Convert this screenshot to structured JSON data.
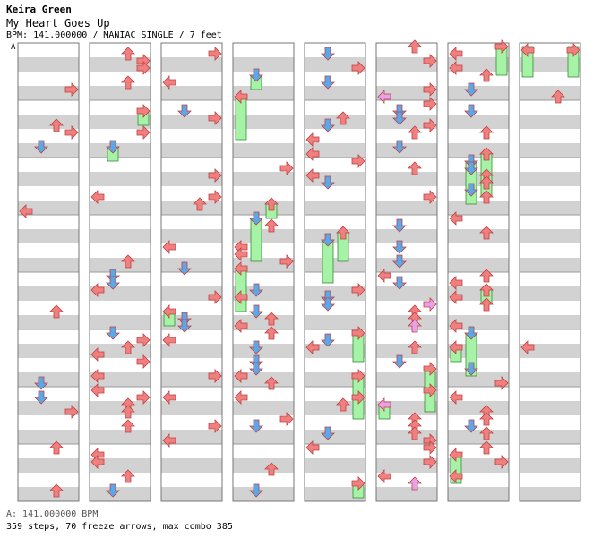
{
  "header": {
    "artist": "Keira Green",
    "song": "My Heart Goes Up",
    "info": "BPM: 141.000000 / MANIAC SINGLE / 7 feet"
  },
  "section_label": "A",
  "footer": {
    "bpm_line": "A: 141.000000 BPM",
    "stats": "359 steps, 70 freeze arrows, max combo 385"
  },
  "colors": {
    "left": "#f08080",
    "up": "#f08080",
    "down": "#5aa8ea",
    "right": "#f08080",
    "special": "#e8a0e8",
    "freeze": "#a6f2a6",
    "stripe": "#d2d2d2",
    "border": "#777777"
  },
  "chart_data": {
    "type": "table",
    "description_of_columns": [
      "left",
      "down",
      "up",
      "right"
    ],
    "column_count": 8,
    "measures_per_column": 8,
    "rows_per_measure": 4,
    "columns": [
      {
        "notes": []
      },
      {
        "notes": []
      },
      {
        "notes": []
      },
      {
        "notes": []
      },
      {
        "notes": []
      },
      {
        "notes": []
      },
      {
        "notes": []
      },
      {
        "notes": []
      }
    ]
  }
}
